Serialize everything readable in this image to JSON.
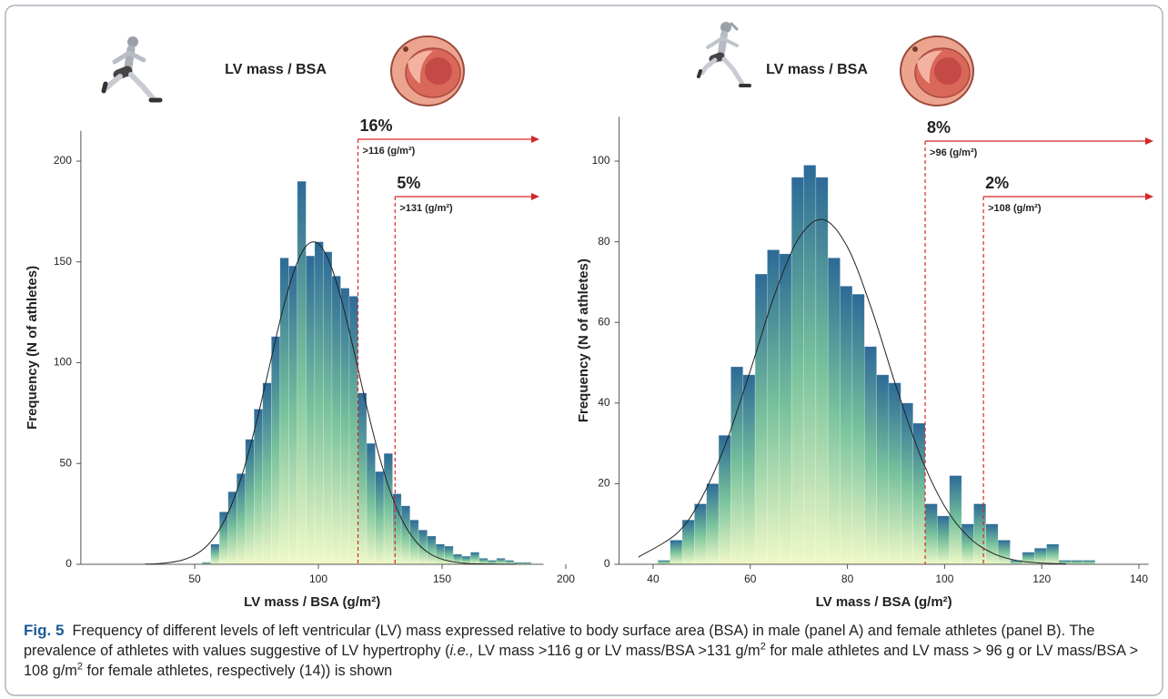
{
  "chart_data": [
    {
      "type": "histogram",
      "title": "LV mass / BSA",
      "xlabel": "LV mass / BSA (g/m²)",
      "ylabel": "Frequency (N of athletes)",
      "bins": [
        53,
        56.5,
        60,
        63.5,
        67,
        70.5,
        74,
        77.5,
        81,
        84.5,
        88,
        91.5,
        95,
        98.5,
        102,
        105.5,
        109,
        112.5,
        116,
        119.5,
        123,
        126.5,
        130,
        133.5,
        137,
        140.5,
        144,
        147.5,
        151,
        154.5,
        158,
        161.5,
        165,
        168.5,
        172,
        175.5,
        179,
        182.5,
        186
      ],
      "counts": [
        1,
        10,
        26,
        36,
        45,
        62,
        77,
        90,
        113,
        152,
        148,
        190,
        153,
        160,
        155,
        143,
        137,
        133,
        85,
        60,
        46,
        55,
        35,
        29,
        22,
        17,
        14,
        10,
        9,
        5,
        4,
        6,
        3,
        2,
        3,
        2,
        1,
        1
      ],
      "bar_gradient": [
        "#2d6a97",
        "#78c29c",
        "#f0f9c8"
      ],
      "xlim": [
        4,
        191
      ],
      "ylim": [
        0,
        215
      ],
      "xticks": [
        50,
        100,
        150,
        200
      ],
      "yticks": [
        0,
        50,
        100,
        150,
        200
      ],
      "fit_curve": {
        "color": "#222222",
        "x": [
          30,
          35,
          40,
          45,
          50,
          55,
          60,
          65,
          70,
          75,
          80,
          85,
          90,
          95,
          100,
          105,
          110,
          115,
          120,
          125,
          130,
          135,
          140,
          145,
          150,
          155,
          160,
          165,
          170,
          180
        ],
        "y": [
          0.1,
          0.3,
          0.9,
          2.1,
          4.6,
          9.2,
          17.2,
          29.8,
          47.7,
          70.7,
          97.0,
          123.3,
          144.9,
          157.8,
          159.0,
          148.3,
          128.1,
          102.4,
          75.8,
          51.9,
          32.9,
          19.3,
          10.5,
          5.3,
          2.5,
          1.1,
          0.4,
          0.2,
          0.1,
          0
        ]
      },
      "thresholds": {
        "color": "#d62728",
        "x": [
          116,
          131
        ],
        "values": [
          16,
          5
        ],
        "value_labels": [
          "16%",
          "5%"
        ],
        "labels": [
          ">116 (g/m²)",
          ">131 (g/m²)"
        ]
      }
    },
    {
      "type": "histogram",
      "title": "LV mass / BSA",
      "xlabel": "LV mass / BSA (g/m²)",
      "ylabel": "Frequency (N of athletes)",
      "bins": [
        41,
        43.5,
        46,
        48.5,
        51,
        53.5,
        56,
        58.5,
        61,
        63.5,
        66,
        68.5,
        71,
        73.5,
        76,
        78.5,
        81,
        83.5,
        86,
        88.5,
        91,
        93.5,
        96,
        98.5,
        101,
        103.5,
        106,
        108.5,
        111,
        113.5,
        116,
        118.5,
        121,
        123.5,
        126,
        128.5,
        131
      ],
      "counts": [
        1,
        6,
        11,
        15,
        20,
        32,
        49,
        47,
        72,
        78,
        77,
        96,
        99,
        96,
        76,
        69,
        67,
        54,
        47,
        45,
        40,
        35,
        15,
        12,
        22,
        10,
        15,
        10,
        6,
        1,
        3,
        4,
        5,
        1,
        1,
        1
      ],
      "bar_gradient": [
        "#2d6a97",
        "#78c29c",
        "#f0f9c8"
      ],
      "xlim": [
        33,
        142
      ],
      "ylim": [
        0,
        111
      ],
      "xticks": [
        40,
        60,
        80,
        100,
        120,
        140
      ],
      "yticks": [
        0,
        20,
        40,
        60,
        80,
        100
      ],
      "fit_curve": {
        "color": "#222222",
        "x": [
          37,
          45,
          50,
          55,
          60,
          65,
          70,
          75,
          80,
          85,
          90,
          95,
          100,
          105,
          110,
          115,
          120,
          125
        ],
        "y": [
          1.8,
          7.8,
          16.5,
          30.1,
          48.0,
          66.8,
          80.9,
          85.5,
          78.7,
          63.2,
          44.2,
          27.0,
          14.4,
          6.7,
          2.7,
          0.9,
          0.3,
          0.1
        ]
      },
      "thresholds": {
        "color": "#d62728",
        "x": [
          96,
          108
        ],
        "values": [
          8,
          2
        ],
        "value_labels": [
          "8%",
          "2%"
        ],
        "labels": [
          ">96 (g/m²)",
          ">108 (g/m²)"
        ]
      }
    }
  ],
  "caption": [
    {
      "text": "Fig. 5",
      "style": "bold"
    },
    {
      "text": "  Frequency of different levels of left ventricular (LV) mass expressed relative to body surface area (BSA) in male (panel A) and female athletes (panel B). The prevalence of athletes with values suggestive of LV hypertrophy (",
      "style": "normal"
    },
    {
      "text": "i.e.,",
      "style": "italic"
    },
    {
      "text": " LV mass >116 g or LV mass/BSA >131 g/m",
      "style": "normal"
    },
    {
      "text": "2",
      "style": "sup"
    },
    {
      "text": " for male athletes and LV mass > 96 g or LV mass/BSA > 108 g/m",
      "style": "normal"
    },
    {
      "text": "2",
      "style": "sup"
    },
    {
      "text": " for female athletes, respectively (14)) is shown",
      "style": "normal"
    }
  ]
}
